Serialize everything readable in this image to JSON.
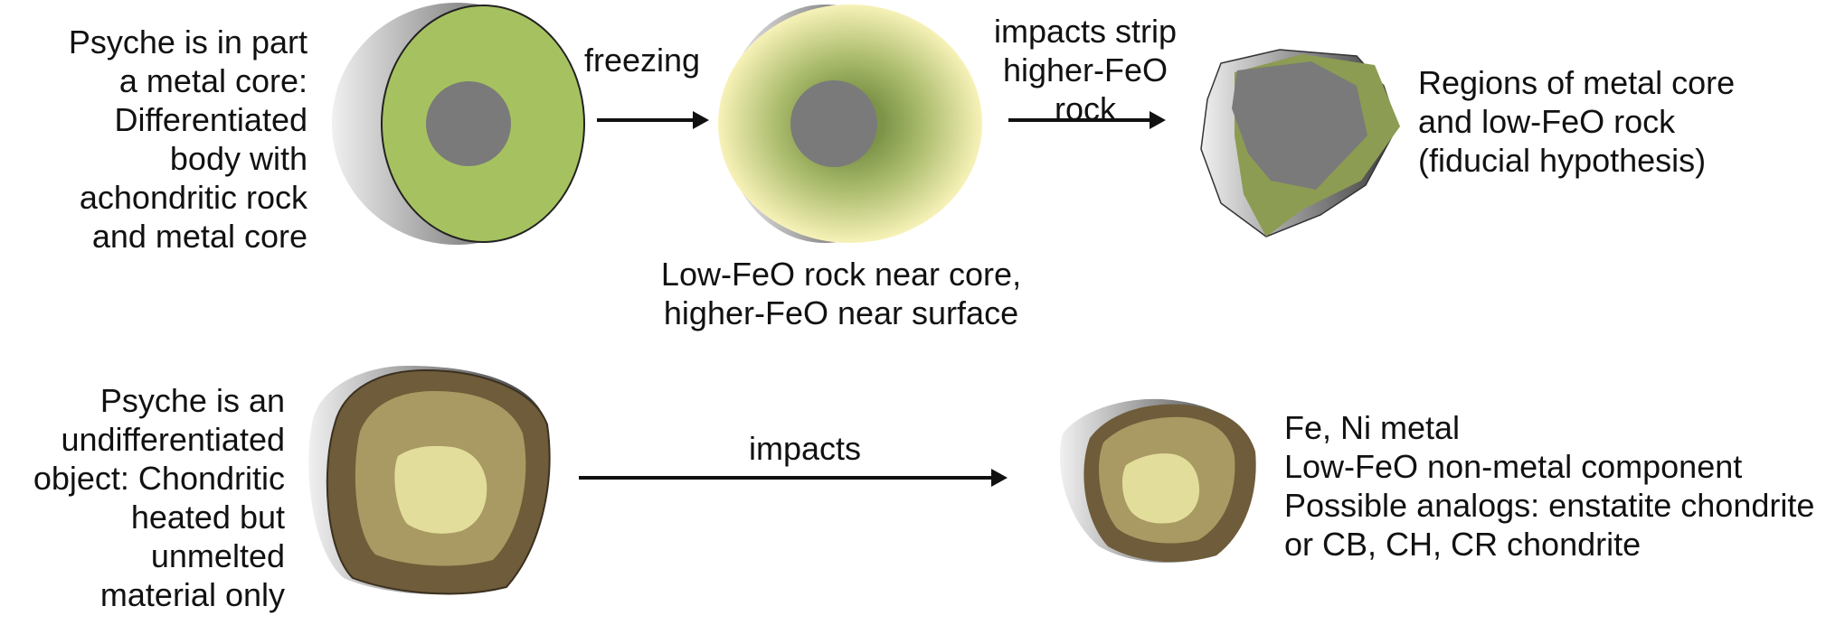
{
  "top_row": {
    "intro_label": [
      "Psyche is in part",
      "a metal core:",
      "Differentiated",
      "body with",
      "achondritic rock",
      "and  metal core"
    ],
    "arrow1_label": [
      "freezing"
    ],
    "caption_middle": [
      "Low-FeO rock near core,",
      "higher-FeO near surface"
    ],
    "arrow2_label": [
      "impacts strip",
      "higher-FeO",
      "rock"
    ],
    "result_label": [
      "Regions of metal core",
      "and low-FeO rock",
      "(fiducial hypothesis)"
    ]
  },
  "bottom_row": {
    "intro_label": [
      "Psyche is an",
      "undifferentiated",
      "object: Chondritic",
      "heated but",
      "unmelted",
      "material only"
    ],
    "arrow_label": [
      "impacts"
    ],
    "result_label": [
      "Fe, Ni metal",
      "Low-FeO non-metal component",
      "Possible analogs: enstatite chondrite",
      "or CB, CH, CR chondrite"
    ]
  },
  "colors": {
    "rock_green": "#a6c260",
    "core_gray": "#7a7a7a",
    "pale_yellow": "#f6f1b6",
    "olive": "#8c9c52",
    "chondrite_dark": "#6e5c3a",
    "chondrite_mid": "#a89a62",
    "chondrite_light": "#e3dd9c"
  }
}
